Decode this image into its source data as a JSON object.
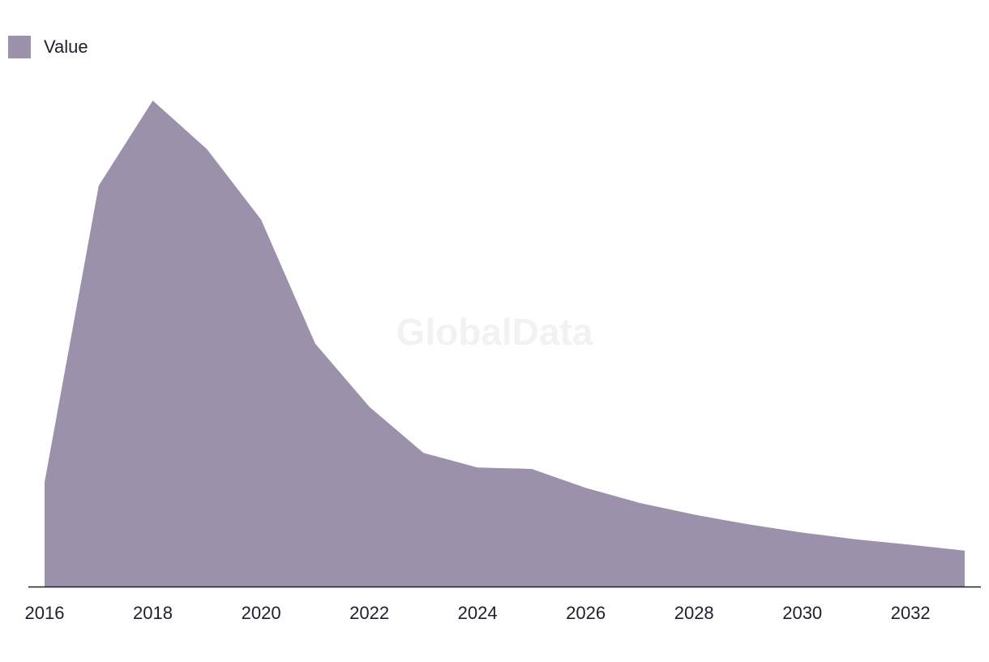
{
  "chart_data": {
    "type": "area",
    "title": "",
    "xlabel": "",
    "ylabel": "",
    "x": [
      2016,
      2017,
      2018,
      2019,
      2020,
      2021,
      2022,
      2023,
      2024,
      2025,
      2026,
      2027,
      2028,
      2029,
      2030,
      2031,
      2032,
      2033
    ],
    "series": [
      {
        "name": "Value",
        "values": [
          21.5,
          82.5,
          100,
          90,
          75.5,
          50,
          37,
          27.5,
          24.5,
          24.2,
          20.3,
          17.2,
          14.8,
          12.8,
          11.1,
          9.7,
          8.6,
          7.4
        ],
        "color": "#9b91aa"
      }
    ],
    "xticks": [
      "2016",
      "2018",
      "2020",
      "2022",
      "2024",
      "2026",
      "2028",
      "2030",
      "2032"
    ],
    "xlim": [
      2016,
      2033
    ],
    "ylim": [
      0,
      100
    ],
    "grid": false,
    "legend": "top-left",
    "watermark": "GlobalData"
  },
  "legend": {
    "label": "Value",
    "color": "#9b91aa"
  }
}
